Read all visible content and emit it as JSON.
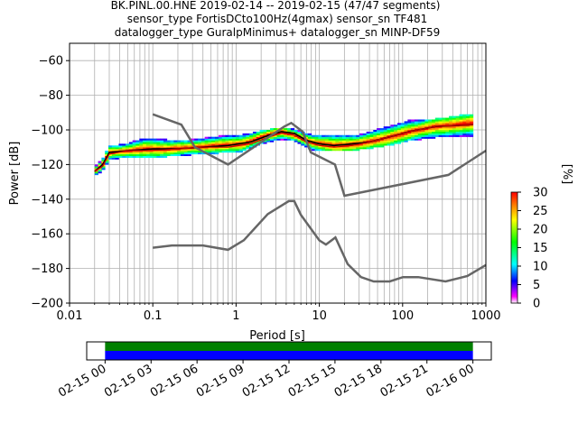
{
  "chart_data": [
    {
      "type": "heatmap",
      "title": [
        "BK.PINL.00.HNE   2019-02-14 -- 2019-02-15  (47/47 segments)",
        "sensor_type FortisDCto100Hz(4gmax) sensor_sn TF481",
        "datalogger_type GuralpMinimus+ datalogger_sn MINP-DF59"
      ],
      "xlabel": "Period [s]",
      "ylabel": "Power [dB]",
      "xscale": "log",
      "xlim": [
        0.01,
        1000
      ],
      "ylim": [
        -200,
        -50
      ],
      "xticks": [
        {
          "value": 0.01,
          "label": "0.01"
        },
        {
          "value": 0.1,
          "label": "0.1"
        },
        {
          "value": 1,
          "label": "1"
        },
        {
          "value": 10,
          "label": "10"
        },
        {
          "value": 100,
          "label": "100"
        },
        {
          "value": 1000,
          "label": "1000"
        }
      ],
      "yticks": [
        {
          "value": -200,
          "label": "−200"
        },
        {
          "value": -180,
          "label": "−180"
        },
        {
          "value": -160,
          "label": "−160"
        },
        {
          "value": -140,
          "label": "−140"
        },
        {
          "value": -120,
          "label": "−120"
        },
        {
          "value": -100,
          "label": "−100"
        },
        {
          "value": -80,
          "label": "−80"
        },
        {
          "value": -60,
          "label": "−60"
        }
      ],
      "grid": true,
      "colorbar": {
        "label": "[%]",
        "range": [
          0,
          30
        ],
        "ticks": [
          {
            "value": 0,
            "label": "0"
          },
          {
            "value": 5,
            "label": "5"
          },
          {
            "value": 10,
            "label": "10"
          },
          {
            "value": 15,
            "label": "15"
          },
          {
            "value": 20,
            "label": "20"
          },
          {
            "value": 25,
            "label": "25"
          },
          {
            "value": 30,
            "label": "30"
          }
        ],
        "colors": [
          "#ffffff",
          "#ff00ff",
          "#0000ff",
          "#00ffff",
          "#00ff00",
          "#ffff00",
          "#ff8000",
          "#ff0000"
        ]
      },
      "heatmap_band": [
        {
          "period": 0.02,
          "low": -126,
          "high": -122,
          "center": -124
        },
        {
          "period": 0.025,
          "low": -123,
          "high": -117,
          "center": -120
        },
        {
          "period": 0.03,
          "low": -117,
          "high": -110,
          "center": -113
        },
        {
          "period": 0.05,
          "low": -115,
          "high": -108,
          "center": -112
        },
        {
          "period": 0.08,
          "low": -116,
          "high": -105,
          "center": -111
        },
        {
          "period": 0.15,
          "low": -115,
          "high": -106,
          "center": -111
        },
        {
          "period": 0.3,
          "low": -114,
          "high": -106,
          "center": -110
        },
        {
          "period": 0.6,
          "low": -113,
          "high": -104,
          "center": -109
        },
        {
          "period": 1.2,
          "low": -112,
          "high": -103,
          "center": -108
        },
        {
          "period": 2.0,
          "low": -108,
          "high": -101,
          "center": -104
        },
        {
          "period": 3.5,
          "low": -105,
          "high": -99,
          "center": -101
        },
        {
          "period": 5.0,
          "low": -106,
          "high": -100,
          "center": -103
        },
        {
          "period": 8.0,
          "low": -111,
          "high": -103,
          "center": -107
        },
        {
          "period": 15,
          "low": -112,
          "high": -103,
          "center": -109
        },
        {
          "period": 30,
          "low": -111,
          "high": -103,
          "center": -108
        },
        {
          "period": 60,
          "low": -109,
          "high": -99,
          "center": -105
        },
        {
          "period": 120,
          "low": -106,
          "high": -95,
          "center": -101
        },
        {
          "period": 250,
          "low": -104,
          "high": -94,
          "center": -98
        },
        {
          "period": 700,
          "low": -103,
          "high": -91,
          "center": -96
        }
      ],
      "series": [
        {
          "kind": "mode",
          "color": "#000000",
          "x": [
            0.02,
            0.025,
            0.03,
            0.05,
            0.1,
            0.2,
            0.4,
            0.8,
            1.5,
            2.5,
            3.5,
            5,
            7,
            10,
            15,
            25,
            40,
            70,
            120,
            250,
            700
          ],
          "y": [
            -124,
            -120,
            -113,
            -112,
            -111,
            -111,
            -110,
            -109,
            -107,
            -103,
            -101,
            -102,
            -106,
            -108,
            -109,
            -108,
            -107,
            -104,
            -101,
            -98,
            -97
          ]
        },
        {
          "kind": "mean",
          "color": "#cc0000",
          "x": [
            0.02,
            0.025,
            0.03,
            0.05,
            0.1,
            0.2,
            0.4,
            0.8,
            1.5,
            2.5,
            3.5,
            5,
            7,
            10,
            15,
            25,
            40,
            70,
            120,
            250,
            700
          ],
          "y": [
            -124,
            -121,
            -114,
            -112,
            -112,
            -111,
            -110,
            -110,
            -108,
            -104,
            -102,
            -103,
            -107,
            -109,
            -110,
            -109,
            -107,
            -104,
            -101,
            -98,
            -97
          ]
        },
        {
          "kind": "noise-model-high",
          "color": "#666666",
          "x": [
            0.1,
            0.22,
            0.32,
            0.8,
            3.8,
            4.6,
            6.3,
            7.9,
            15.4,
            20,
            354.8,
            1000
          ],
          "y": [
            -91,
            -97,
            -110,
            -120,
            -98,
            -96,
            -101,
            -113,
            -120,
            -138,
            -126,
            -112
          ]
        },
        {
          "kind": "noise-model-low",
          "color": "#666666",
          "x": [
            0.1,
            0.17,
            0.4,
            0.8,
            1.24,
            2.4,
            4.3,
            5.0,
            6.0,
            10,
            12,
            15.6,
            21.9,
            31.6,
            45,
            70,
            101,
            154,
            328,
            600,
            1000
          ],
          "y": [
            -168,
            -166.7,
            -166.7,
            -169.2,
            -163.7,
            -148.6,
            -141.1,
            -141.1,
            -149.0,
            -163.8,
            -166.2,
            -162.1,
            -177.5,
            -185.0,
            -187.5,
            -187.5,
            -185.0,
            -185.0,
            -187.5,
            -184.4,
            -178
          ]
        }
      ]
    },
    {
      "type": "timeline",
      "xlim_labels": [
        "02-15 00",
        "02-16 00"
      ],
      "tick_labels": [
        "02-15 00",
        "02-15 03",
        "02-15 06",
        "02-15 09",
        "02-15 12",
        "02-15 15",
        "02-15 18",
        "02-15 21",
        "02-16 00"
      ],
      "tick_hours": [
        0,
        3,
        6,
        9,
        12,
        15,
        18,
        21,
        24
      ],
      "range_hours": [
        -1.2,
        25.2
      ],
      "coverage": [
        {
          "color": "#008000",
          "start_hour": 0,
          "end_hour": 24
        },
        {
          "color": "#0000ff",
          "start_hour": 0,
          "end_hour": 24
        }
      ]
    }
  ]
}
